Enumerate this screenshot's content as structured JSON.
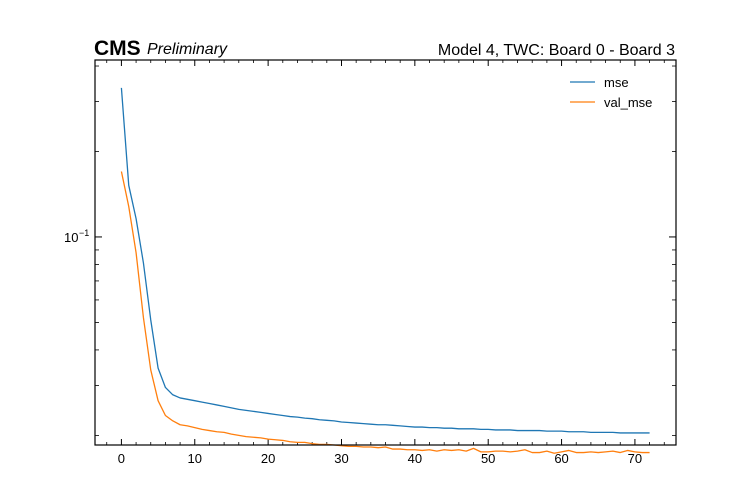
{
  "header": {
    "cms_label": "CMS",
    "preliminary_label": "Preliminary",
    "right_title": "Model 4, TWC: Board 0 - Board 3"
  },
  "chart_data": {
    "type": "line",
    "yscale": "log",
    "xlim": [
      -3.6,
      75.6
    ],
    "ylim": [
      0.0185,
      0.42
    ],
    "grid": false,
    "legend_position": "top-right",
    "x_ticks": [
      0,
      10,
      20,
      30,
      40,
      50,
      60,
      70
    ],
    "y_major_ticks": [
      0.1
    ],
    "y_major_tick_labels": [
      "10",
      "−1"
    ],
    "series": [
      {
        "name": "mse",
        "color": "#1f77b4",
        "x": [
          0,
          1,
          2,
          3,
          4,
          5,
          6,
          7,
          8,
          9,
          10,
          11,
          12,
          13,
          14,
          15,
          16,
          17,
          18,
          19,
          20,
          21,
          22,
          23,
          24,
          25,
          26,
          27,
          28,
          29,
          30,
          31,
          32,
          33,
          34,
          35,
          36,
          37,
          38,
          39,
          40,
          41,
          42,
          43,
          44,
          45,
          46,
          47,
          48,
          49,
          50,
          51,
          52,
          53,
          54,
          55,
          56,
          57,
          58,
          59,
          60,
          61,
          62,
          63,
          64,
          65,
          66,
          67,
          68,
          69,
          70,
          71,
          72
        ],
        "values": [
          0.335,
          0.152,
          0.116,
          0.081,
          0.051,
          0.0345,
          0.0295,
          0.0278,
          0.0271,
          0.0268,
          0.0265,
          0.0262,
          0.0259,
          0.0256,
          0.0253,
          0.025,
          0.0247,
          0.0245,
          0.0243,
          0.0241,
          0.0239,
          0.0237,
          0.0235,
          0.0233,
          0.0232,
          0.023,
          0.0229,
          0.0227,
          0.0226,
          0.0225,
          0.0223,
          0.0222,
          0.0221,
          0.022,
          0.0219,
          0.0218,
          0.0218,
          0.0217,
          0.0216,
          0.0215,
          0.0214,
          0.0214,
          0.0213,
          0.0213,
          0.0212,
          0.0212,
          0.0211,
          0.0211,
          0.0211,
          0.021,
          0.021,
          0.0209,
          0.0209,
          0.0209,
          0.0208,
          0.0208,
          0.0208,
          0.0208,
          0.0207,
          0.0207,
          0.0207,
          0.0206,
          0.0206,
          0.0206,
          0.0205,
          0.0205,
          0.0205,
          0.0205,
          0.0204,
          0.0204,
          0.0204,
          0.0204,
          0.0204
        ]
      },
      {
        "name": "val_mse",
        "color": "#ff7f0e",
        "x": [
          0,
          1,
          2,
          3,
          4,
          5,
          6,
          7,
          8,
          9,
          10,
          11,
          12,
          13,
          14,
          15,
          16,
          17,
          18,
          19,
          20,
          21,
          22,
          23,
          24,
          25,
          26,
          27,
          28,
          29,
          30,
          31,
          32,
          33,
          34,
          35,
          36,
          37,
          38,
          39,
          40,
          41,
          42,
          43,
          44,
          45,
          46,
          47,
          48,
          49,
          50,
          51,
          52,
          53,
          54,
          55,
          56,
          57,
          58,
          59,
          60,
          61,
          62,
          63,
          64,
          65,
          66,
          67,
          68,
          69,
          70,
          71,
          72
        ],
        "values": [
          0.17,
          0.128,
          0.088,
          0.052,
          0.034,
          0.0265,
          0.0235,
          0.0225,
          0.0218,
          0.0216,
          0.0213,
          0.021,
          0.0208,
          0.0206,
          0.0205,
          0.0202,
          0.02,
          0.0198,
          0.0197,
          0.0196,
          0.0194,
          0.0193,
          0.0192,
          0.019,
          0.0189,
          0.0189,
          0.0187,
          0.0186,
          0.0186,
          0.0185,
          0.0184,
          0.0183,
          0.0183,
          0.0182,
          0.0182,
          0.0181,
          0.0182,
          0.0179,
          0.0179,
          0.0178,
          0.0178,
          0.0177,
          0.0178,
          0.0176,
          0.0178,
          0.0177,
          0.0178,
          0.0176,
          0.018,
          0.0175,
          0.0175,
          0.0176,
          0.0176,
          0.0175,
          0.0176,
          0.0178,
          0.0174,
          0.0174,
          0.0176,
          0.0173,
          0.0175,
          0.0177,
          0.0174,
          0.0174,
          0.0175,
          0.0174,
          0.0175,
          0.0176,
          0.0174,
          0.0177,
          0.0175,
          0.0174,
          0.0174
        ]
      }
    ]
  }
}
